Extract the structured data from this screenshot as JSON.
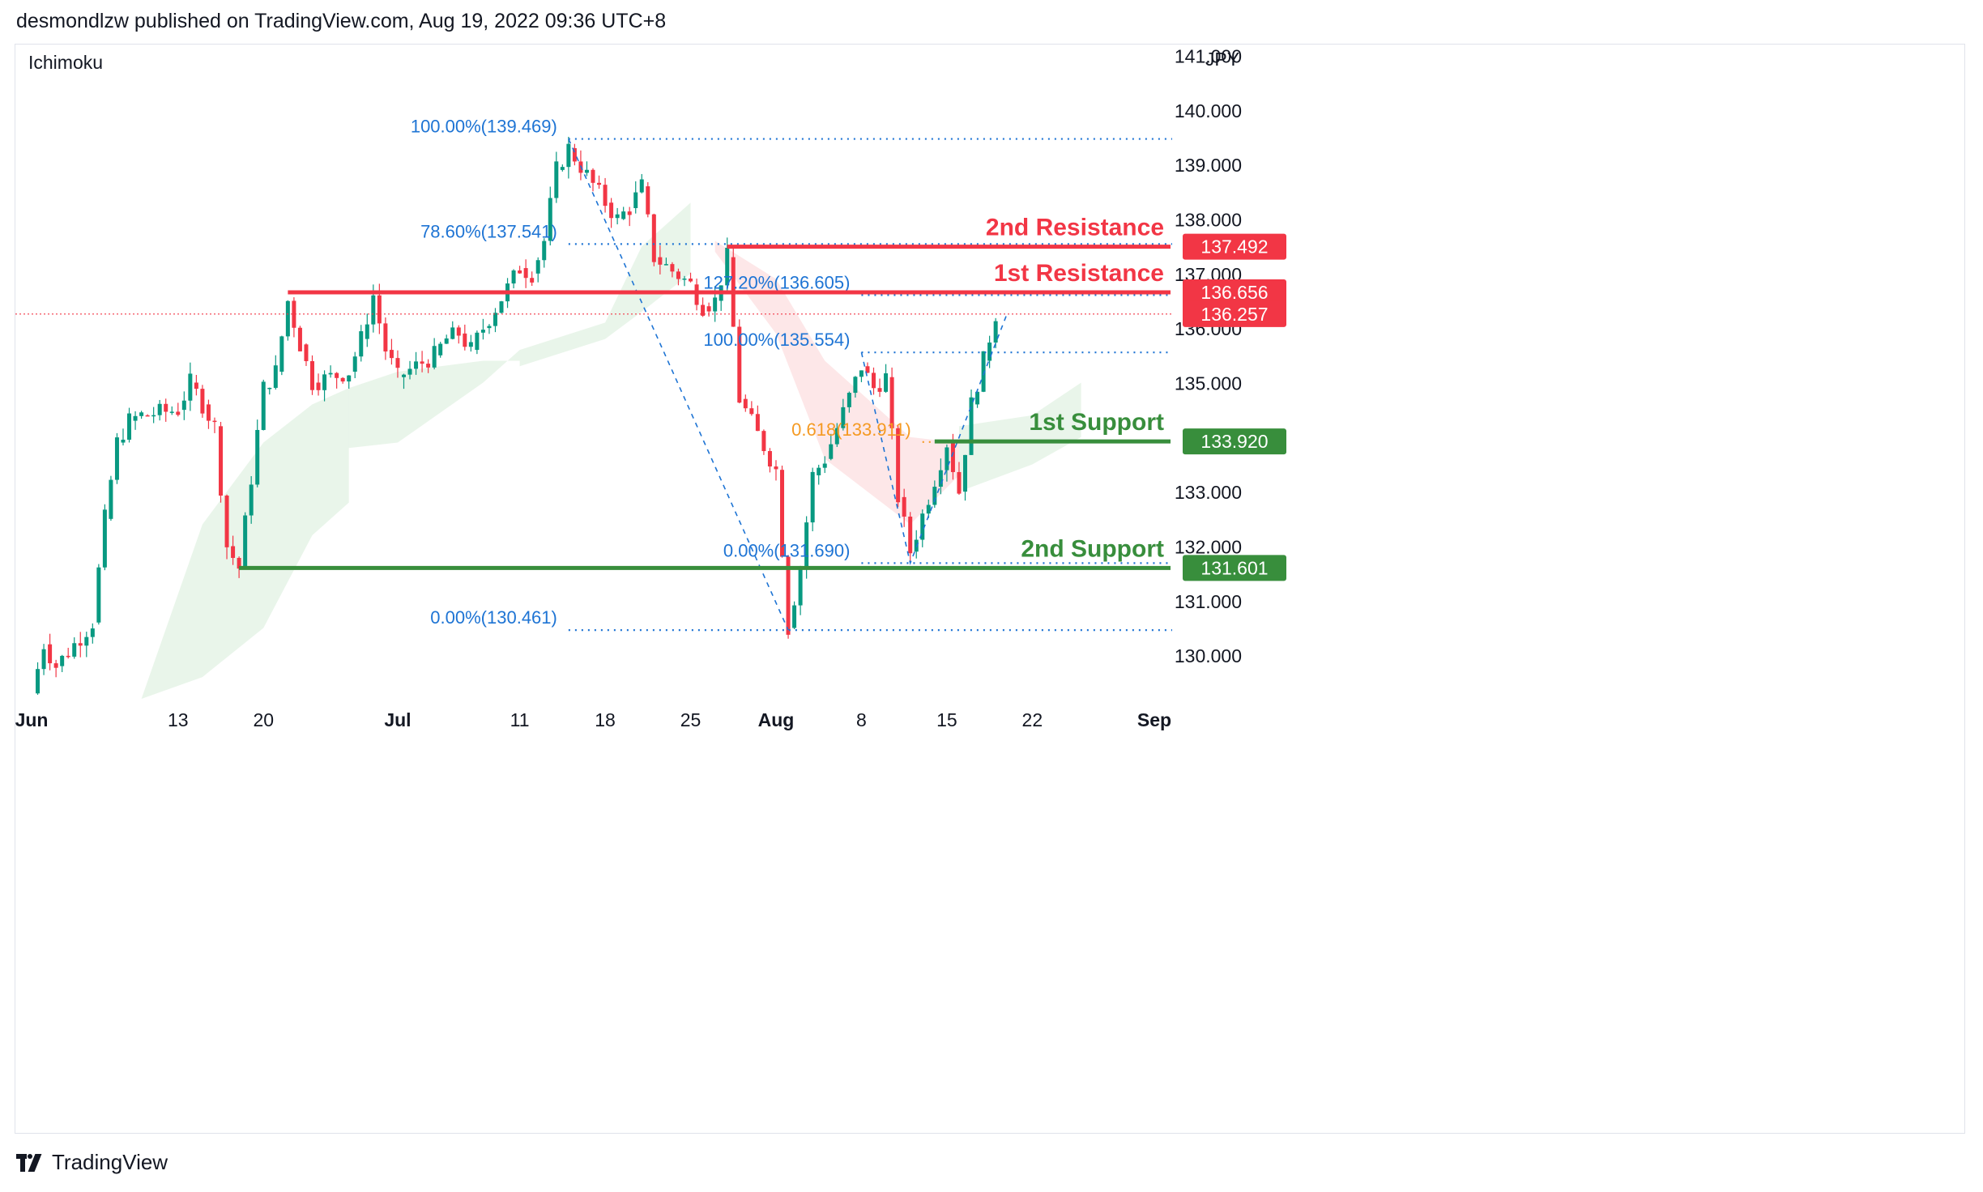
{
  "header": {
    "publisher": "desmondlzw published on TradingView.com, Aug 19, 2022 09:36 UTC+8"
  },
  "footer": {
    "brand": "TradingView",
    "logo_icon": "tradingview-logo-icon"
  },
  "chart_data": {
    "type": "candlestick",
    "indicator": "Ichimoku",
    "currency": "JPY",
    "ylim": [
      129.2,
      141.2
    ],
    "y_ticks": [
      "141.000",
      "140.000",
      "139.000",
      "138.000",
      "137.000",
      "136.000",
      "135.000",
      "133.000",
      "132.000",
      "131.000",
      "130.000"
    ],
    "x_ticks": [
      {
        "label": "Jun",
        "date": "2022-06-01",
        "bold": true
      },
      {
        "label": "13",
        "date": "2022-06-13",
        "bold": false
      },
      {
        "label": "20",
        "date": "2022-06-20",
        "bold": false
      },
      {
        "label": "Jul",
        "date": "2022-07-01",
        "bold": true
      },
      {
        "label": "11",
        "date": "2022-07-11",
        "bold": false
      },
      {
        "label": "18",
        "date": "2022-07-18",
        "bold": false
      },
      {
        "label": "25",
        "date": "2022-07-25",
        "bold": false
      },
      {
        "label": "Aug",
        "date": "2022-08-01",
        "bold": true
      },
      {
        "label": "8",
        "date": "2022-08-08",
        "bold": false
      },
      {
        "label": "15",
        "date": "2022-08-15",
        "bold": false
      },
      {
        "label": "22",
        "date": "2022-08-22",
        "bold": false
      },
      {
        "label": "Sep",
        "date": "2022-09-01",
        "bold": true
      }
    ],
    "price_path": [
      [
        "2022-06-01",
        129.3
      ],
      [
        "2022-06-02",
        130.2
      ],
      [
        "2022-06-03",
        129.8
      ],
      [
        "2022-06-06",
        130.6
      ],
      [
        "2022-06-07",
        132.5
      ],
      [
        "2022-06-08",
        133.9
      ],
      [
        "2022-06-09",
        134.3
      ],
      [
        "2022-06-10",
        134.4
      ],
      [
        "2022-06-13",
        134.5
      ],
      [
        "2022-06-14",
        135.0
      ],
      [
        "2022-06-15",
        134.6
      ],
      [
        "2022-06-16",
        134.2
      ],
      [
        "2022-06-17",
        132.0
      ],
      [
        "2022-06-18",
        131.6
      ],
      [
        "2022-06-20",
        134.9
      ],
      [
        "2022-06-21",
        135.2
      ],
      [
        "2022-06-22",
        136.5
      ],
      [
        "2022-06-23",
        135.7
      ],
      [
        "2022-06-24",
        135.0
      ],
      [
        "2022-06-27",
        135.2
      ],
      [
        "2022-06-28",
        135.8
      ],
      [
        "2022-06-29",
        136.6
      ],
      [
        "2022-06-30",
        135.6
      ],
      [
        "2022-07-01",
        135.1
      ],
      [
        "2022-07-04",
        135.5
      ],
      [
        "2022-07-05",
        135.8
      ],
      [
        "2022-07-06",
        135.9
      ],
      [
        "2022-07-07",
        135.6
      ],
      [
        "2022-07-08",
        136.0
      ],
      [
        "2022-07-11",
        137.1
      ],
      [
        "2022-07-12",
        137.0
      ],
      [
        "2022-07-13",
        137.6
      ],
      [
        "2022-07-14",
        138.9
      ],
      [
        "2022-07-15",
        139.3
      ],
      [
        "2022-07-18",
        138.3
      ],
      [
        "2022-07-19",
        138.0
      ],
      [
        "2022-07-20",
        138.2
      ],
      [
        "2022-07-21",
        138.6
      ],
      [
        "2022-07-22",
        137.3
      ],
      [
        "2022-07-25",
        136.8
      ],
      [
        "2022-07-26",
        136.4
      ],
      [
        "2022-07-27",
        136.5
      ],
      [
        "2022-07-28",
        137.3
      ],
      [
        "2022-07-29",
        134.7
      ],
      [
        "2022-08-01",
        133.4
      ],
      [
        "2022-08-02",
        130.5
      ],
      [
        "2022-08-03",
        131.6
      ],
      [
        "2022-08-04",
        133.3
      ],
      [
        "2022-08-05",
        133.6
      ],
      [
        "2022-08-08",
        135.3
      ],
      [
        "2022-08-09",
        134.9
      ],
      [
        "2022-08-10",
        135.1
      ],
      [
        "2022-08-11",
        132.9
      ],
      [
        "2022-08-12",
        131.9
      ],
      [
        "2022-08-15",
        133.9
      ],
      [
        "2022-08-16",
        133.0
      ],
      [
        "2022-08-17",
        134.6
      ],
      [
        "2022-08-18",
        135.4
      ],
      [
        "2022-08-19",
        136.26
      ]
    ],
    "ichimoku_cloud": [
      {
        "from": "2022-06-10",
        "to": "2022-06-27",
        "top": [
          [
            "2022-06-10",
            129.2
          ],
          [
            "2022-06-15",
            132.4
          ],
          [
            "2022-06-20",
            133.9
          ],
          [
            "2022-06-24",
            134.6
          ],
          [
            "2022-06-27",
            134.9
          ]
        ],
        "bottom": [
          [
            "2022-06-10",
            129.2
          ],
          [
            "2022-06-15",
            129.6
          ],
          [
            "2022-06-20",
            130.5
          ],
          [
            "2022-06-24",
            132.2
          ],
          [
            "2022-06-27",
            132.8
          ]
        ],
        "color": "green"
      },
      {
        "from": "2022-06-27",
        "to": "2022-07-11",
        "top": [
          [
            "2022-06-27",
            134.9
          ],
          [
            "2022-07-01",
            135.2
          ],
          [
            "2022-07-08",
            135.4
          ],
          [
            "2022-07-11",
            135.4
          ]
        ],
        "bottom": [
          [
            "2022-06-27",
            133.8
          ],
          [
            "2022-07-01",
            133.9
          ],
          [
            "2022-07-08",
            135.0
          ],
          [
            "2022-07-11",
            135.6
          ]
        ],
        "color": "green"
      },
      {
        "from": "2022-07-11",
        "to": "2022-07-25",
        "top": [
          [
            "2022-07-11",
            135.6
          ],
          [
            "2022-07-18",
            136.1
          ],
          [
            "2022-07-21",
            137.5
          ],
          [
            "2022-07-25",
            138.3
          ]
        ],
        "bottom": [
          [
            "2022-07-11",
            135.3
          ],
          [
            "2022-07-18",
            135.8
          ],
          [
            "2022-07-21",
            136.3
          ],
          [
            "2022-07-25",
            137.0
          ]
        ],
        "color": "green"
      },
      {
        "from": "2022-07-27",
        "to": "2022-08-16",
        "top": [
          [
            "2022-07-27",
            137.6
          ],
          [
            "2022-08-01",
            136.9
          ],
          [
            "2022-08-05",
            135.4
          ],
          [
            "2022-08-12",
            134.0
          ],
          [
            "2022-08-16",
            133.9
          ]
        ],
        "bottom": [
          [
            "2022-07-27",
            137.4
          ],
          [
            "2022-08-01",
            135.9
          ],
          [
            "2022-08-05",
            133.6
          ],
          [
            "2022-08-12",
            132.4
          ],
          [
            "2022-08-16",
            133.3
          ]
        ],
        "color": "red"
      },
      {
        "from": "2022-08-16",
        "to": "2022-08-26",
        "top": [
          [
            "2022-08-16",
            134.2
          ],
          [
            "2022-08-22",
            134.4
          ],
          [
            "2022-08-26",
            135.0
          ]
        ],
        "bottom": [
          [
            "2022-08-16",
            133.0
          ],
          [
            "2022-08-22",
            133.5
          ],
          [
            "2022-08-26",
            134.0
          ]
        ],
        "color": "green"
      }
    ],
    "levels": [
      {
        "label": "2nd Resistance",
        "value": 137.492,
        "value_text": "137.492",
        "color": "#f23645",
        "from": "2022-07-28"
      },
      {
        "label": "1st Resistance",
        "value": 136.656,
        "value_text": "136.656",
        "color": "#f23645",
        "from": "2022-06-22"
      },
      {
        "label": "1st Support",
        "value": 133.92,
        "value_text": "133.920",
        "color": "#388e3c",
        "from": "2022-08-14"
      },
      {
        "label": "2nd Support",
        "value": 131.601,
        "value_text": "131.601",
        "color": "#388e3c",
        "from": "2022-06-18"
      }
    ],
    "current_price": {
      "value": 136.257,
      "value_text": "136.257",
      "color": "#f23645"
    },
    "fib_levels": [
      {
        "text": "100.00%(139.469)",
        "value": 139.469,
        "from": "2022-07-15",
        "color": "#1e74d4"
      },
      {
        "text": "78.60%(137.541)",
        "value": 137.541,
        "from": "2022-07-15",
        "color": "#1e74d4"
      },
      {
        "text": "0.00%(130.461)",
        "value": 130.461,
        "from": "2022-07-15",
        "color": "#1e74d4"
      },
      {
        "text": "127.20%(136.605)",
        "value": 136.605,
        "from": "2022-08-08",
        "color": "#1e74d4"
      },
      {
        "text": "100.00%(135.554)",
        "value": 135.554,
        "from": "2022-08-08",
        "color": "#1e74d4"
      },
      {
        "text": "0.00%(131.690)",
        "value": 131.69,
        "from": "2022-08-08",
        "color": "#1e74d4"
      },
      {
        "text": "0.618(133.911)",
        "value": 133.911,
        "from": "2022-08-13",
        "color": "#f59a23"
      }
    ],
    "fib_diagonals": [
      [
        [
          "2022-07-15",
          139.469
        ],
        [
          "2022-08-02",
          130.461
        ]
      ],
      [
        [
          "2022-08-08",
          135.554
        ],
        [
          "2022-08-12",
          131.69
        ],
        [
          "2022-08-20",
          136.3
        ]
      ]
    ]
  }
}
